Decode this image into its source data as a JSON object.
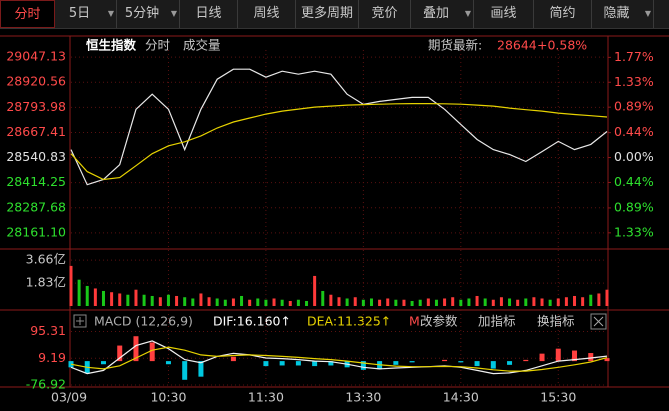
{
  "toolbar": {
    "tabs": [
      "分时",
      "5日",
      "5分钟",
      "日线",
      "周线",
      "更多周期",
      "竞价",
      "叠加",
      "画线",
      "简约",
      "隐藏"
    ]
  },
  "chart_data": [
    {
      "type": "line",
      "title": "恒生指数",
      "subtitles": [
        "分时",
        "成交量"
      ],
      "quote_label": "期货最新:",
      "quote_value": 28644,
      "quote_change": "+0.58%",
      "x": [
        0,
        10,
        20,
        30,
        40,
        50,
        60,
        70,
        80,
        90,
        100,
        110,
        120,
        130,
        140,
        150,
        160,
        170,
        180,
        190,
        200,
        210,
        220,
        230,
        240,
        250,
        260,
        270,
        280,
        290,
        300,
        310,
        320,
        330
      ],
      "xlim": [
        0,
        330
      ],
      "xticks": [
        {
          "value": 0,
          "label": "03/09"
        },
        {
          "value": 60,
          "label": "10:30"
        },
        {
          "value": 120,
          "label": "11:30"
        },
        {
          "value": 180,
          "label": "13:30"
        },
        {
          "value": 240,
          "label": "14:30"
        },
        {
          "value": 300,
          "label": "15:30"
        }
      ],
      "series": [
        {
          "color": "#e8e8e8",
          "values": [
            28581,
            28404,
            28430,
            28505,
            28784,
            28860,
            28784,
            28581,
            28784,
            28936,
            28986,
            28986,
            28946,
            28976,
            28961,
            28976,
            28961,
            28860,
            28809,
            28824,
            28834,
            28844,
            28844,
            28784,
            28708,
            28632,
            28581,
            28556,
            28521,
            28571,
            28622,
            28581,
            28607,
            28672
          ]
        },
        {
          "color": "#e6d200",
          "values": [
            28560,
            28470,
            28430,
            28440,
            28500,
            28560,
            28600,
            28620,
            28650,
            28690,
            28720,
            28740,
            28760,
            28775,
            28785,
            28795,
            28800,
            28805,
            28808,
            28810,
            28812,
            28813,
            28813,
            28812,
            28810,
            28805,
            28800,
            28790,
            28782,
            28775,
            28765,
            28758,
            28752,
            28745
          ]
        }
      ],
      "ylim": [
        28100,
        29083
      ],
      "yticks": [
        29047.13,
        28920.56,
        28793.98,
        28667.41,
        28540.83,
        28414.25,
        28287.68,
        {
          "value": 28161.1,
          "label": "28161.10"
        }
      ],
      "y2lim": [
        -1.545,
        1.9
      ],
      "y2ticks": [
        {
          "value": 1.77,
          "label": "1.77%"
        },
        {
          "value": 1.33,
          "label": "1.33%"
        },
        {
          "value": 0.89,
          "label": "0.89%"
        },
        {
          "value": 0.44,
          "label": "0.44%"
        },
        {
          "value": 0,
          "label": "0.00%"
        },
        {
          "value": -0.44,
          "label": "0.44%"
        },
        {
          "value": -0.89,
          "label": "0.89%"
        },
        {
          "value": -1.33,
          "label": "1.33%"
        }
      ],
      "grid": true
    },
    {
      "type": "bar",
      "x": [
        0,
        5,
        10,
        15,
        20,
        25,
        30,
        35,
        40,
        45,
        50,
        55,
        60,
        65,
        70,
        75,
        80,
        85,
        90,
        95,
        100,
        105,
        110,
        115,
        120,
        125,
        130,
        135,
        140,
        145,
        150,
        155,
        160,
        165,
        170,
        175,
        180,
        185,
        190,
        195,
        200,
        205,
        210,
        215,
        220,
        225,
        230,
        235,
        240,
        245,
        250,
        255,
        260,
        265,
        270,
        275,
        280,
        285,
        290,
        295,
        300,
        305,
        310,
        315,
        320,
        325,
        330
      ],
      "xlim": [
        0,
        330
      ],
      "values": [
        3.2,
        2.1,
        1.6,
        1.4,
        1.2,
        1.1,
        1.0,
        0.9,
        1.3,
        0.9,
        0.8,
        0.7,
        0.9,
        0.8,
        0.7,
        0.6,
        1.0,
        0.7,
        0.6,
        0.5,
        0.6,
        0.8,
        0.5,
        0.6,
        0.5,
        0.6,
        0.5,
        0.4,
        0.5,
        0.4,
        2.4,
        1.2,
        0.9,
        0.7,
        0.6,
        0.7,
        0.5,
        0.6,
        0.5,
        0.6,
        0.5,
        0.5,
        0.4,
        0.5,
        0.6,
        0.5,
        0.6,
        0.7,
        0.5,
        0.6,
        0.8,
        0.6,
        0.5,
        0.7,
        0.6,
        0.5,
        0.6,
        0.7,
        0.6,
        0.5,
        0.6,
        0.7,
        0.8,
        0.7,
        0.9,
        1.0,
        1.3
      ],
      "colors": [
        "#ff3a3a",
        "#19c819",
        "#19c819",
        "#ff3a3a",
        "#19c819",
        "#ff3a3a",
        "#ff3a3a",
        "#19c819",
        "#ff3a3a",
        "#19c819",
        "#19c819",
        "#ff3a3a",
        "#19c819",
        "#ff3a3a",
        "#19c819",
        "#19c819",
        "#ff3a3a",
        "#ff3a3a",
        "#19c819",
        "#19c819",
        "#ff3a3a",
        "#19c819",
        "#ff3a3a",
        "#19c819",
        "#19c819",
        "#ff3a3a",
        "#19c819",
        "#ff3a3a",
        "#19c819",
        "#19c819",
        "#ff3a3a",
        "#19c819",
        "#ff3a3a",
        "#ff3a3a",
        "#19c819",
        "#ff3a3a",
        "#19c819",
        "#19c819",
        "#ff3a3a",
        "#ff3a3a",
        "#19c819",
        "#ff3a3a",
        "#19c819",
        "#19c819",
        "#ff3a3a",
        "#19c819",
        "#ff3a3a",
        "#ff3a3a",
        "#19c819",
        "#19c819",
        "#ff3a3a",
        "#19c819",
        "#ff3a3a",
        "#ff3a3a",
        "#19c819",
        "#ff3a3a",
        "#19c819",
        "#ff3a3a",
        "#ff3a3a",
        "#19c819",
        "#ff3a3a",
        "#ff3a3a",
        "#ff3a3a",
        "#ff3a3a",
        "#19c819",
        "#ff3a3a",
        "#ff3a3a"
      ],
      "ylim": [
        0,
        4.31
      ],
      "yticks": [
        {
          "value": 3.66,
          "label": "3.66亿"
        },
        {
          "value": 1.83,
          "label": "1.83亿"
        }
      ],
      "grid": true
    },
    {
      "type": "macd",
      "title": "MACD (12,26,9)",
      "annotations": [
        "DIF:16.160↑",
        "DEA:11.325↑",
        "M"
      ],
      "buttons": [
        "改参数",
        "加指标",
        "换指标"
      ],
      "x": [
        0,
        10,
        20,
        30,
        40,
        50,
        60,
        70,
        80,
        90,
        100,
        110,
        120,
        130,
        140,
        150,
        160,
        170,
        180,
        190,
        200,
        210,
        220,
        230,
        240,
        250,
        260,
        270,
        280,
        290,
        300,
        310,
        320,
        330
      ],
      "xlim": [
        0,
        330
      ],
      "series": [
        {
          "color": "#f0f0f0",
          "values": [
            -20,
            -40,
            -30,
            10,
            50,
            65,
            40,
            5,
            -5,
            15,
            25,
            20,
            10,
            8,
            5,
            0,
            -2,
            -10,
            -20,
            -25,
            -22,
            -20,
            -18,
            -15,
            -20,
            -30,
            -40,
            -38,
            -30,
            -15,
            0,
            5,
            10,
            16.16
          ]
        },
        {
          "color": "#e6d200",
          "values": [
            -10,
            -20,
            -25,
            -15,
            10,
            35,
            45,
            35,
            20,
            15,
            18,
            20,
            18,
            15,
            12,
            8,
            5,
            0,
            -6,
            -12,
            -16,
            -18,
            -18,
            -17,
            -18,
            -22,
            -28,
            -32,
            -32,
            -27,
            -20,
            -12,
            -3,
            11.325
          ]
        }
      ],
      "histogram": {
        "values": [
          -20,
          -40,
          -10,
          50,
          80,
          60,
          -10,
          -60,
          -50,
          0,
          14,
          0,
          -16,
          -14,
          -14,
          -16,
          -14,
          -20,
          -28,
          -26,
          -12,
          -4,
          0,
          4,
          -4,
          -16,
          -24,
          -12,
          4,
          24,
          40,
          34,
          26,
          9.67
        ],
        "up_color": "#ff4040",
        "down_color": "#00c8e0"
      },
      "ylim": [
        -80,
        100
      ],
      "yticks": [
        95.31,
        9.19,
        -76.92
      ],
      "grid": true
    }
  ]
}
